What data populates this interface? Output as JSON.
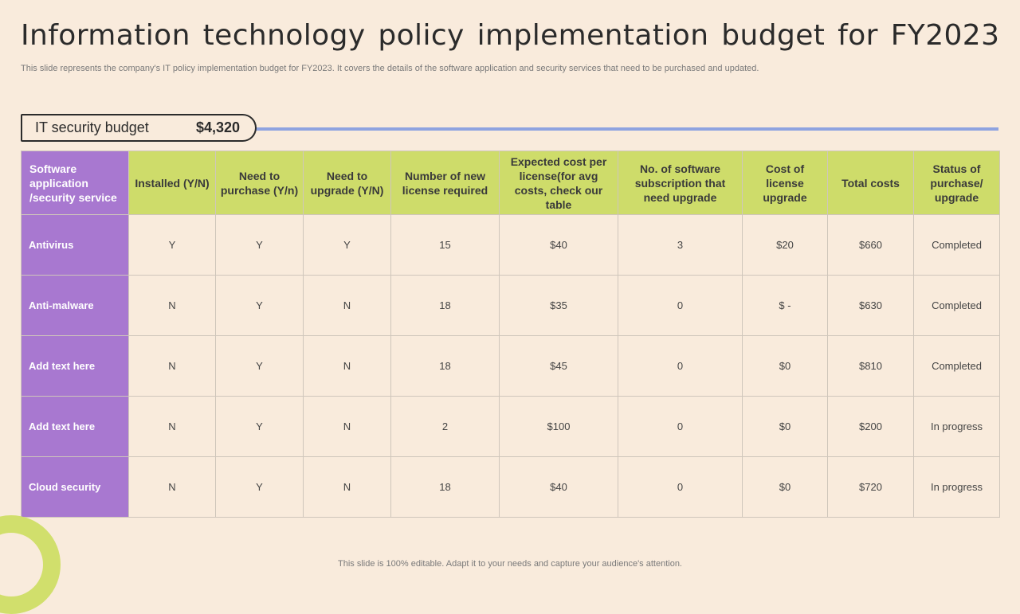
{
  "title": "Information technology policy implementation budget for FY2023",
  "subtitle": "This slide represents the company's IT policy implementation budget for FY2023.  It covers the details of the software application and security services that need to be purchased and updated.",
  "budget": {
    "label": "IT security budget",
    "value": "$4,320"
  },
  "table": {
    "headers": [
      "Software application /security service",
      "Installed (Y/N)",
      "Need to purchase (Y/n)",
      "Need to upgrade (Y/N)",
      "Number of  new license required",
      "Expected cost per license(for avg costs, check our table",
      "No. of software subscription that need upgrade",
      "Cost of license upgrade",
      "Total costs",
      "Status of purchase/ upgrade"
    ],
    "rows": [
      [
        "Antivirus",
        "Y",
        "Y",
        "Y",
        "15",
        "$40",
        "3",
        "$20",
        "$660",
        "Completed"
      ],
      [
        "Anti-malware",
        "N",
        "Y",
        "N",
        "18",
        "$35",
        "0",
        "$ -",
        "$630",
        "Completed"
      ],
      [
        "Add text here",
        "N",
        "Y",
        "N",
        "18",
        "$45",
        "0",
        "$0",
        "$810",
        "Completed"
      ],
      [
        "Add text here",
        "N",
        "Y",
        "N",
        "2",
        "$100",
        "0",
        "$0",
        "$200",
        "In progress"
      ],
      [
        "Cloud security",
        "N",
        "Y",
        "N",
        "18",
        "$40",
        "0",
        "$0",
        "$720",
        "In progress"
      ]
    ]
  },
  "footer": "This slide is 100% editable. Adapt it to your needs and capture your audience's attention.",
  "colors": {
    "background": "#f9ebdc",
    "header_green": "#cedc6a",
    "first_column_purple": "#a878d0",
    "budget_line": "#8fa3e0"
  }
}
